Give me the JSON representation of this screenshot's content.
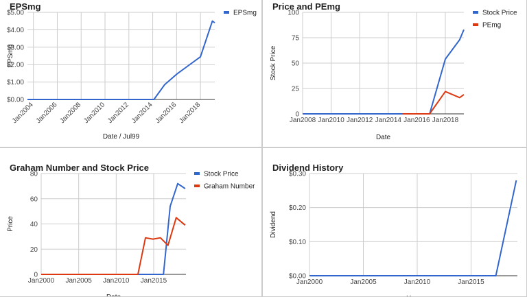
{
  "colors": {
    "blue": "#3366cc",
    "red": "#dc3912",
    "grid": "#cccccc",
    "axis": "#333333"
  },
  "panels": [
    {
      "title": "EPSmg",
      "xlabel": "Date / Jul99",
      "ylabel": "EPSmg",
      "chart_data": {
        "type": "line",
        "title": "EPSmg",
        "xlabel": "Date / Jul99",
        "ylabel": "EPSmg",
        "x_type": "year",
        "xlim": [
          2003.5,
          2019.2
        ],
        "ylim": [
          0,
          5
        ],
        "x_ticks": [
          2004,
          2006,
          2008,
          2010,
          2012,
          2014,
          2016,
          2018
        ],
        "x_tick_labels": [
          "Jan2004",
          "Jan2006",
          "Jan2008",
          "Jan2010",
          "Jan2012",
          "Jan2014",
          "Jan2016",
          "Jan2018"
        ],
        "y_ticks": [
          0,
          1,
          2,
          3,
          4,
          5
        ],
        "y_tick_labels": [
          "$0.00",
          "$1.00",
          "$2.00",
          "$3.00",
          "$4.00",
          "$5.00"
        ],
        "x_tick_rotate": true,
        "grid": true,
        "legend": "top-right",
        "series": [
          {
            "name": "EPSmg",
            "color": "#3366cc",
            "x": [
              2003.5,
              2014.1,
              2015,
              2016,
              2017,
              2018,
              2019,
              2019.2
            ],
            "y": [
              0,
              0,
              0.85,
              1.45,
              1.95,
              2.45,
              4.5,
              4.4
            ]
          }
        ]
      }
    },
    {
      "title": "Price and PEmg",
      "xlabel": "Date",
      "ylabel": "Stock Price",
      "chart_data": {
        "type": "line",
        "title": "Price and PEmg",
        "xlabel": "Date",
        "ylabel": "Stock Price",
        "x_type": "year",
        "xlim": [
          2008,
          2019.3
        ],
        "ylim": [
          0,
          100
        ],
        "x_ticks": [
          2008,
          2010,
          2012,
          2014,
          2016,
          2018
        ],
        "x_tick_labels": [
          "Jan2008",
          "Jan2010",
          "Jan2012",
          "Jan2014",
          "Jan2016",
          "Jan2018"
        ],
        "y_ticks": [
          0,
          25,
          50,
          75,
          100
        ],
        "y_tick_labels": [
          "0",
          "25",
          "50",
          "75",
          "100"
        ],
        "x_tick_rotate": false,
        "grid": true,
        "legend": "top-right",
        "series": [
          {
            "name": "Stock Price",
            "color": "#3366cc",
            "x": [
              2008,
              2016.9,
              2018,
              2019,
              2019.3
            ],
            "y": [
              0,
              0,
              54,
              73,
              83
            ]
          },
          {
            "name": "PEmg",
            "color": "#dc3912",
            "x": [
              2015,
              2016.9,
              2018,
              2019,
              2019.3
            ],
            "y": [
              0,
              0,
              22,
              16,
              19
            ]
          }
        ]
      }
    },
    {
      "title": "Graham Number and Stock Price",
      "xlabel": "Date",
      "ylabel": "Price",
      "chart_data": {
        "type": "line",
        "title": "Graham Number and Stock Price",
        "xlabel": "Date",
        "ylabel": "Price",
        "x_type": "year",
        "xlim": [
          2000,
          2019.3
        ],
        "ylim": [
          0,
          80
        ],
        "x_ticks": [
          2000,
          2005,
          2010,
          2015
        ],
        "x_tick_labels": [
          "Jan2000",
          "Jan2005",
          "Jan2010",
          "Jan2015"
        ],
        "y_ticks": [
          0,
          20,
          40,
          60,
          80
        ],
        "y_tick_labels": [
          "0",
          "20",
          "40",
          "60",
          "80"
        ],
        "x_tick_rotate": false,
        "grid": true,
        "legend": "top-right",
        "series": [
          {
            "name": "Stock Price",
            "color": "#3366cc",
            "x": [
              2000,
              2016.3,
              2017.2,
              2018.2,
              2019.2
            ],
            "y": [
              0,
              0,
              54,
              72,
              68
            ]
          },
          {
            "name": "Graham Number",
            "color": "#dc3912",
            "x": [
              2000,
              2012.9,
              2013.9,
              2014.9,
              2015.9,
              2016.9,
              2018,
              2019.2
            ],
            "y": [
              0,
              0,
              29,
              28,
              29,
              23,
              45,
              39
            ]
          }
        ]
      }
    },
    {
      "title": "Dividend History",
      "xlabel": "Year",
      "ylabel": "Dividend",
      "chart_data": {
        "type": "line",
        "title": "Dividend History",
        "xlabel": "Year",
        "ylabel": "Dividend",
        "x_type": "year",
        "xlim": [
          2000,
          2019.3
        ],
        "ylim": [
          0,
          0.3
        ],
        "x_ticks": [
          2000,
          2005,
          2010,
          2015
        ],
        "x_tick_labels": [
          "Jan2000",
          "Jan2005",
          "Jan2010",
          "Jan2015"
        ],
        "y_ticks": [
          0,
          0.1,
          0.2,
          0.3
        ],
        "y_tick_labels": [
          "$0.00",
          "$0.10",
          "$0.20",
          "$0.30"
        ],
        "x_tick_rotate": false,
        "grid": true,
        "legend": "none",
        "series": [
          {
            "name": "",
            "color": "#3366cc",
            "x": [
              2000,
              2017.3,
              2019.2
            ],
            "y": [
              0,
              0,
              0.28
            ]
          }
        ]
      }
    }
  ]
}
